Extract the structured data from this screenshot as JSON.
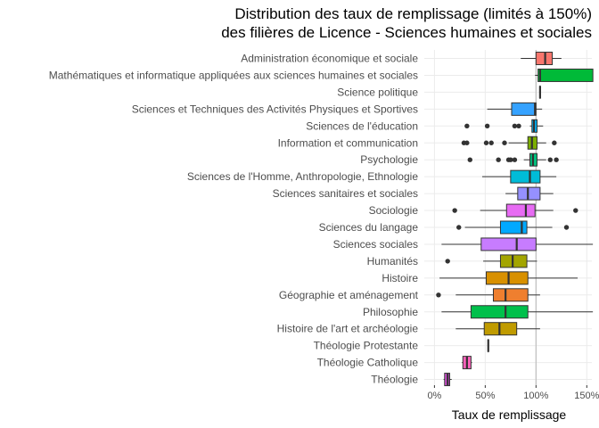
{
  "chart_data": {
    "type": "boxplot",
    "title": "Distribution des taux de remplissage (limités à 150%)",
    "subtitle": "des filières de Licence - Sciences humaines et sociales",
    "xlabel": "Taux de remplissage",
    "ylabel": "",
    "xlim": [
      -10,
      155
    ],
    "x_ticks": [
      0,
      50,
      100,
      150
    ],
    "x_tick_labels": [
      "0%",
      "50%",
      "100%",
      "150%"
    ],
    "reference_line": 100,
    "grid": true,
    "legend": "none",
    "series": [
      {
        "name": "Administration économique et sociale",
        "q1": 100,
        "median": 109,
        "q3": 116,
        "whisker_low": 85,
        "whisker_high": 125,
        "outliers": [],
        "color": "#F8766D"
      },
      {
        "name": "Mathématiques et informatique appliquées aux sciences humaines et sociales",
        "q1": 102,
        "median": 104,
        "q3": 156,
        "whisker_low": 99,
        "whisker_high": 156,
        "outliers": [],
        "color": "#00BA38"
      },
      {
        "name": "Science politique",
        "q1": 104,
        "median": 104,
        "q3": 104,
        "whisker_low": 104,
        "whisker_high": 104,
        "outliers": [],
        "color": "#E58700"
      },
      {
        "name": "Sciences et Techniques des Activités Physiques et Sportives",
        "q1": 76,
        "median": 99,
        "q3": 100,
        "whisker_low": 52,
        "whisker_high": 106,
        "outliers": [],
        "color": "#35A2FF"
      },
      {
        "name": "Sciences de l'éducation",
        "q1": 96,
        "median": 98,
        "q3": 101,
        "whisker_low": 94,
        "whisker_high": 107,
        "outliers": [
          32,
          52,
          79,
          83
        ],
        "color": "#00B0F6"
      },
      {
        "name": "Information et communication",
        "q1": 92,
        "median": 96,
        "q3": 101,
        "whisker_low": 73,
        "whisker_high": 110,
        "outliers": [
          29,
          32,
          51,
          56,
          69,
          118
        ],
        "color": "#7CAE00"
      },
      {
        "name": "Psychologie",
        "q1": 94,
        "median": 97,
        "q3": 101,
        "whisker_low": 88,
        "whisker_high": 110,
        "outliers": [
          35,
          63,
          73,
          75,
          79,
          114,
          120
        ],
        "color": "#00BF7D"
      },
      {
        "name": "Sciences de l'Homme, Anthropologie, Ethnologie",
        "q1": 75,
        "median": 94,
        "q3": 104,
        "whisker_low": 47,
        "whisker_high": 120,
        "outliers": [],
        "color": "#00BCD8"
      },
      {
        "name": "Sciences sanitaires et sociales",
        "q1": 82,
        "median": 92,
        "q3": 104,
        "whisker_low": 70,
        "whisker_high": 117,
        "outliers": [],
        "color": "#9590FF"
      },
      {
        "name": "Sociologie",
        "q1": 71,
        "median": 90,
        "q3": 99,
        "whisker_low": 45,
        "whisker_high": 117,
        "outliers": [
          20,
          139
        ],
        "color": "#E76BF3"
      },
      {
        "name": "Sciences du langage",
        "q1": 65,
        "median": 86,
        "q3": 91,
        "whisker_low": 30,
        "whisker_high": 116,
        "outliers": [
          24,
          130
        ],
        "color": "#00A9FF"
      },
      {
        "name": "Sciences sociales",
        "q1": 46,
        "median": 81,
        "q3": 100,
        "whisker_low": 7,
        "whisker_high": 156,
        "outliers": [],
        "color": "#C77CFF"
      },
      {
        "name": "Humanités",
        "q1": 65,
        "median": 77,
        "q3": 91,
        "whisker_low": 48,
        "whisker_high": 101,
        "outliers": [
          13
        ],
        "color": "#A3A500"
      },
      {
        "name": "Histoire",
        "q1": 51,
        "median": 73,
        "q3": 92,
        "whisker_low": 5,
        "whisker_high": 141,
        "outliers": [],
        "color": "#D89000"
      },
      {
        "name": "Géographie et aménagement",
        "q1": 58,
        "median": 70,
        "q3": 92,
        "whisker_low": 21,
        "whisker_high": 104,
        "outliers": [
          4
        ],
        "color": "#EF7F2F"
      },
      {
        "name": "Philosophie",
        "q1": 36,
        "median": 70,
        "q3": 92,
        "whisker_low": 7,
        "whisker_high": 156,
        "outliers": [],
        "color": "#00C04B"
      },
      {
        "name": "Histoire de l'art et archéologie",
        "q1": 49,
        "median": 64,
        "q3": 81,
        "whisker_low": 21,
        "whisker_high": 104,
        "outliers": [],
        "color": "#C09B00"
      },
      {
        "name": "Théologie Protestante",
        "q1": 53,
        "median": 53,
        "q3": 53,
        "whisker_low": 53,
        "whisker_high": 53,
        "outliers": [],
        "color": "#FF61C3"
      },
      {
        "name": "Théologie Catholique",
        "q1": 28,
        "median": 32,
        "q3": 36,
        "whisker_low": 27,
        "whisker_high": 37,
        "outliers": [],
        "color": "#FF62BC"
      },
      {
        "name": "Théologie",
        "q1": 10,
        "median": 13,
        "q3": 15,
        "whisker_low": 9,
        "whisker_high": 17,
        "outliers": [],
        "color": "#CF4DD0"
      }
    ]
  }
}
